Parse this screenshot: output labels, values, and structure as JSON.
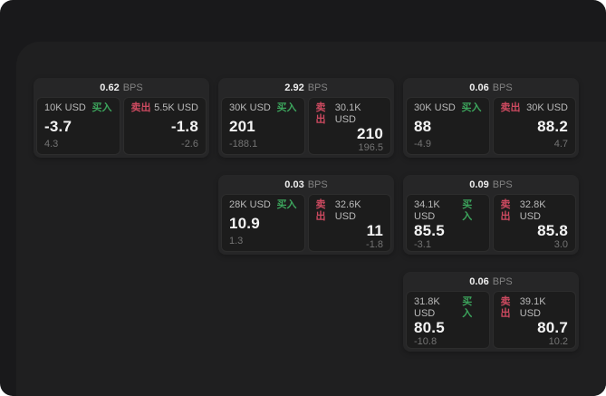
{
  "labels": {
    "bps": "BPS",
    "buy": "买入",
    "sell": "卖出"
  },
  "colors": {
    "buy_green": "#3ca45c",
    "sell_red": "#cd4a60",
    "frame_bg": "#19191b",
    "panel_bg": "#1f1f20",
    "card_bg": "#262627",
    "subpanel_bg": "#1c1c1c"
  },
  "cards": [
    {
      "bps": "0.62",
      "buy": {
        "amount": "10K USD",
        "price": "-3.7",
        "delta": "4.3"
      },
      "sell": {
        "amount": "5.5K USD",
        "price": "-1.8",
        "delta": "-2.6"
      }
    },
    {
      "bps": "2.92",
      "buy": {
        "amount": "30K USD",
        "price": "201",
        "delta": "-188.1"
      },
      "sell": {
        "amount": "30.1K USD",
        "price": "210",
        "delta": "196.5"
      }
    },
    {
      "bps": "0.06",
      "buy": {
        "amount": "30K USD",
        "price": "88",
        "delta": "-4.9"
      },
      "sell": {
        "amount": "30K USD",
        "price": "88.2",
        "delta": "4.7"
      }
    },
    {
      "bps": "0.03",
      "buy": {
        "amount": "28K USD",
        "price": "10.9",
        "delta": "1.3"
      },
      "sell": {
        "amount": "32.6K USD",
        "price": "11",
        "delta": "-1.8"
      }
    },
    {
      "bps": "0.09",
      "buy": {
        "amount": "34.1K USD",
        "price": "85.5",
        "delta": "-3.1"
      },
      "sell": {
        "amount": "32.8K USD",
        "price": "85.8",
        "delta": "3.0"
      }
    },
    {
      "bps": "0.06",
      "buy": {
        "amount": "31.8K USD",
        "price": "80.5",
        "delta": "-10.8"
      },
      "sell": {
        "amount": "39.1K USD",
        "price": "80.7",
        "delta": "10.2"
      }
    }
  ]
}
